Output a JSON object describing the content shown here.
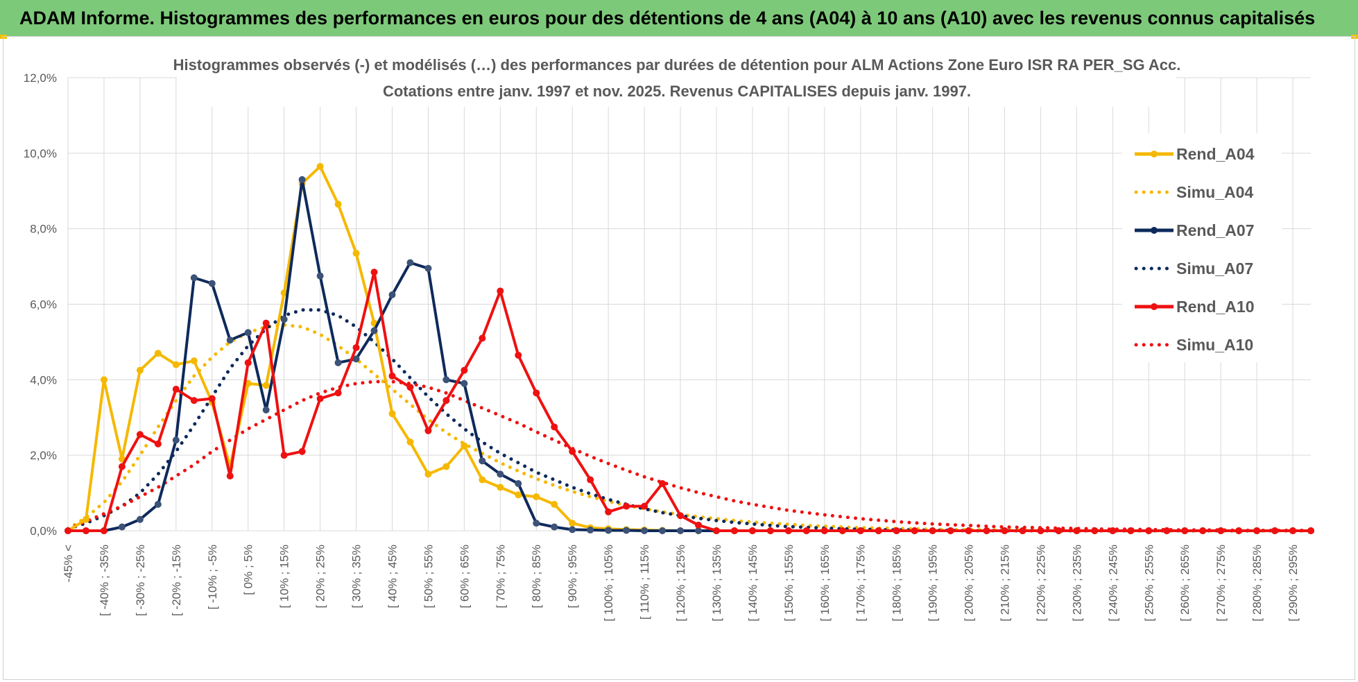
{
  "banner": {
    "title": "ADAM Informe. Histogrammes des performances en euros pour des détentions de 4 ans (A04) à 10 ans (A10) avec les revenus connus capitalisés"
  },
  "colors": {
    "banner_bg": "#7dc97a",
    "a04": "#f5b800",
    "a07": "#0e2a5c",
    "a10": "#ee1111",
    "grid": "#d9d9d9",
    "text": "#595959"
  },
  "chart_data": {
    "type": "line",
    "title_line1": "Histogrammes observés (-) et modélisés (…) des performances par durées de détention pour ALM Actions Zone Euro ISR RA PER_SG Acc.",
    "title_line2": "Cotations entre janv. 1997 et nov. 2025. Revenus CAPITALISES depuis janv. 1997.",
    "ylim": [
      0,
      12
    ],
    "y_ticks": [
      "0,0%",
      "2,0%",
      "4,0%",
      "6,0%",
      "8,0%",
      "10,0%",
      "12,0%"
    ],
    "x_tick_labels": [
      "-45% <",
      "[ -40% ; -35%",
      "[ -30% ; -25%",
      "[ -20% ; -15%",
      "[ -10% ; -5%",
      "[ 0% ; 5%",
      "[ 10% ; 15%",
      "[ 20% ; 25%",
      "[ 30% ; 35%",
      "[ 40% ; 45%",
      "[ 50% ; 55%",
      "[ 60% ; 65%",
      "[ 70% ; 75%",
      "[ 80% ; 85%",
      "[ 90% ; 95%",
      "[ 100% ; 105%",
      "[ 110% ; 115%",
      "[ 120% ; 125%",
      "[ 130% ; 135%",
      "[ 140% ; 145%",
      "[ 150% ; 155%",
      "[ 160% ; 165%",
      "[ 170% ; 175%",
      "[ 180% ; 185%",
      "[ 190% ; 195%",
      "[ 200% ; 205%",
      "[ 210% ; 215%",
      "[ 220% ; 225%",
      "[ 230% ; 235%",
      "[ 240% ; 245%",
      "[ 250% ; 255%",
      "[ 260% ; 265%",
      "[ 270% ; 275%",
      "[ 280% ; 285%",
      "[ 290% ; 295%"
    ],
    "category_count": 70,
    "legend_position": "right",
    "series": [
      {
        "name": "Rend_A04",
        "style": "solid",
        "color": "#f5b800",
        "values": [
          0.0,
          0.3,
          4.0,
          1.9,
          4.25,
          4.7,
          4.4,
          4.5,
          3.4,
          1.7,
          3.9,
          3.85,
          6.3,
          9.2,
          9.65,
          8.65,
          7.35,
          5.5,
          3.1,
          2.35,
          1.5,
          1.7,
          2.25,
          1.35,
          1.15,
          0.95,
          0.9,
          0.7,
          0.2,
          0.08,
          0.05,
          0.03,
          0.02,
          0.01,
          0.0,
          0,
          0,
          0,
          0,
          0,
          0,
          0,
          0,
          0,
          0,
          0,
          0,
          0,
          0,
          0,
          0,
          0,
          0,
          0,
          0,
          0,
          0,
          0,
          0,
          0,
          0,
          0,
          0,
          0,
          0,
          0,
          0,
          0,
          0,
          0
        ]
      },
      {
        "name": "Simu_A04",
        "style": "dotted",
        "color": "#f5b800",
        "values": [
          0.05,
          0.35,
          0.75,
          1.3,
          2.0,
          2.75,
          3.45,
          4.1,
          4.6,
          5.0,
          5.25,
          5.4,
          5.45,
          5.4,
          5.2,
          4.9,
          4.55,
          4.15,
          3.75,
          3.35,
          2.95,
          2.6,
          2.3,
          2.05,
          1.8,
          1.58,
          1.38,
          1.2,
          1.04,
          0.9,
          0.78,
          0.67,
          0.58,
          0.5,
          0.43,
          0.37,
          0.32,
          0.27,
          0.23,
          0.2,
          0.17,
          0.14,
          0.12,
          0.1,
          0.08,
          0.07,
          0.06,
          0.05,
          0.04,
          0.03,
          0.03,
          0.02,
          0.02,
          0.01,
          0.01,
          0.01,
          0,
          0,
          0,
          0,
          0,
          0,
          0,
          0,
          0,
          0,
          0,
          0,
          0,
          0
        ]
      },
      {
        "name": "Rend_A07",
        "style": "solid",
        "color": "#0e2a5c",
        "values": [
          0.0,
          0.0,
          0.0,
          0.1,
          0.3,
          0.7,
          2.4,
          6.7,
          6.55,
          5.05,
          5.25,
          3.2,
          5.6,
          9.3,
          6.75,
          4.45,
          4.55,
          5.3,
          6.25,
          7.1,
          6.95,
          4.0,
          3.9,
          1.85,
          1.5,
          1.25,
          0.2,
          0.1,
          0.03,
          0.02,
          0.01,
          0.01,
          0.0,
          0,
          0,
          0,
          0,
          0,
          0,
          0,
          0,
          0,
          0,
          0,
          0,
          0,
          0,
          0,
          0,
          0,
          0,
          0,
          0,
          0,
          0,
          0,
          0,
          0,
          0,
          0,
          0,
          0,
          0,
          0,
          0,
          0,
          0,
          0,
          0,
          0
        ]
      },
      {
        "name": "Simu_A07",
        "style": "dotted",
        "color": "#0e2a5c",
        "values": [
          0.05,
          0.2,
          0.4,
          0.65,
          1.0,
          1.5,
          2.1,
          2.8,
          3.55,
          4.3,
          4.9,
          5.35,
          5.7,
          5.85,
          5.85,
          5.7,
          5.4,
          5.0,
          4.55,
          4.05,
          3.55,
          3.1,
          2.7,
          2.35,
          2.05,
          1.8,
          1.55,
          1.35,
          1.15,
          0.98,
          0.83,
          0.7,
          0.58,
          0.48,
          0.4,
          0.33,
          0.27,
          0.22,
          0.18,
          0.14,
          0.11,
          0.09,
          0.07,
          0.05,
          0.04,
          0.03,
          0.02,
          0.02,
          0.01,
          0.01,
          0,
          0,
          0,
          0,
          0,
          0,
          0,
          0,
          0,
          0,
          0,
          0,
          0,
          0,
          0,
          0,
          0,
          0,
          0,
          0
        ]
      },
      {
        "name": "Rend_A10",
        "style": "solid",
        "color": "#ee1111",
        "values": [
          0.0,
          0.0,
          0.0,
          1.7,
          2.55,
          2.3,
          3.75,
          3.45,
          3.5,
          1.45,
          4.45,
          5.5,
          2.0,
          2.1,
          3.5,
          3.65,
          4.85,
          6.85,
          4.1,
          3.8,
          2.65,
          3.45,
          4.25,
          5.1,
          6.35,
          4.65,
          3.65,
          2.75,
          2.1,
          1.35,
          0.5,
          0.65,
          0.65,
          1.25,
          0.4,
          0.15,
          0.0,
          0,
          0,
          0,
          0,
          0,
          0,
          0,
          0,
          0,
          0,
          0,
          0,
          0,
          0,
          0,
          0,
          0,
          0,
          0,
          0,
          0,
          0,
          0,
          0,
          0,
          0,
          0,
          0,
          0,
          0,
          0,
          0,
          0
        ]
      },
      {
        "name": "Simu_A10",
        "style": "dotted",
        "color": "#ee1111",
        "values": [
          0.05,
          0.25,
          0.45,
          0.65,
          0.9,
          1.15,
          1.45,
          1.75,
          2.1,
          2.4,
          2.7,
          2.95,
          3.2,
          3.45,
          3.65,
          3.8,
          3.9,
          3.95,
          3.95,
          3.9,
          3.8,
          3.65,
          3.45,
          3.25,
          3.05,
          2.85,
          2.62,
          2.4,
          2.18,
          1.97,
          1.78,
          1.6,
          1.43,
          1.28,
          1.14,
          1.01,
          0.9,
          0.79,
          0.7,
          0.62,
          0.54,
          0.48,
          0.42,
          0.37,
          0.32,
          0.28,
          0.24,
          0.21,
          0.18,
          0.16,
          0.14,
          0.12,
          0.1,
          0.09,
          0.08,
          0.07,
          0.06,
          0.05,
          0.04,
          0.04,
          0.03,
          0.03,
          0.02,
          0.02,
          0.02,
          0.01,
          0.01,
          0.01,
          0.01,
          0.01
        ]
      }
    ]
  }
}
